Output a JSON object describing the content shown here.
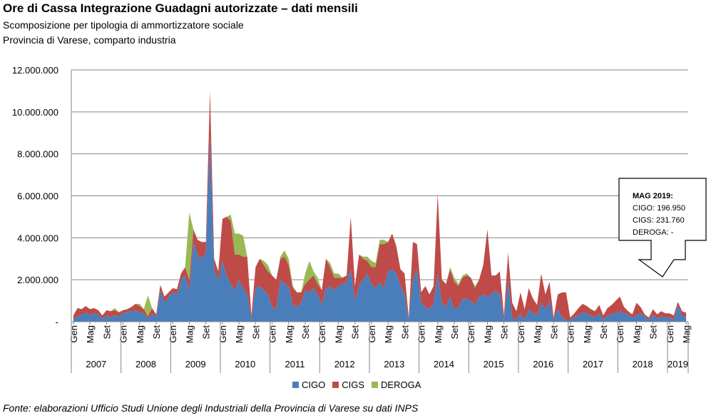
{
  "title": "Ore di Cassa Integrazione Guadagni autorizzate – dati mensili",
  "subtitle1": "Scomposizione per tipologia di ammortizzatore sociale",
  "subtitle2": "Provincia di Varese, comparto industria",
  "source": "Fonte: elaborazioni Ufficio Studi Unione degli Industriali della Provincia di Varese su dati INPS",
  "callout": {
    "header": "MAG 2019:",
    "cigo": "CIGO: 196.950",
    "cigs": "CIGS: 231.760",
    "deroga": "DEROGA: -"
  },
  "legend": [
    {
      "label": "CIGO",
      "color": "#4a7ebb"
    },
    {
      "label": "CIGS",
      "color": "#be4b48"
    },
    {
      "label": "DEROGA",
      "color": "#98b954"
    }
  ],
  "chart_data": {
    "type": "area",
    "stacked": true,
    "ylim": [
      0,
      12000000
    ],
    "yticks": [
      "-",
      "2.000.000",
      "4.000.000",
      "6.000.000",
      "8.000.000",
      "10.000.000",
      "12.000.000"
    ],
    "month_tick_labels": [
      "Gen",
      "Mag",
      "Set"
    ],
    "years": [
      "2007",
      "2008",
      "2009",
      "2010",
      "2011",
      "2012",
      "2013",
      "2014",
      "2015",
      "2016",
      "2017",
      "2018",
      "2019"
    ],
    "grid": true,
    "legend_position": "bottom",
    "series": [
      {
        "name": "CIGO",
        "color": "#4a7ebb",
        "values": [
          100000,
          250000,
          350000,
          450000,
          300000,
          400000,
          350000,
          150000,
          300000,
          200000,
          300000,
          250000,
          400000,
          450000,
          500000,
          550000,
          450000,
          400000,
          150000,
          350000,
          250000,
          1500000,
          900000,
          1200000,
          1400000,
          1300000,
          2000000,
          2200000,
          1500000,
          3800000,
          3200000,
          3000000,
          3300000,
          8800000,
          2500000,
          2000000,
          2900000,
          2200000,
          1800000,
          1500000,
          2000000,
          1600000,
          1300000,
          100000,
          1600000,
          1700000,
          1500000,
          1300000,
          700000,
          600000,
          2000000,
          1800000,
          1700000,
          800000,
          700000,
          900000,
          1500000,
          1400000,
          1600000,
          1300000,
          800000,
          1600000,
          1700000,
          1500000,
          1700000,
          1800000,
          1900000,
          2500000,
          1000000,
          1700000,
          2000000,
          2300000,
          1800000,
          1600000,
          1900000,
          1600000,
          2400000,
          2500000,
          2300000,
          1700000,
          1300000,
          100000,
          2000000,
          2500000,
          900000,
          700000,
          600000,
          900000,
          2300000,
          900000,
          700000,
          1200000,
          600000,
          700000,
          1100000,
          1100000,
          1000000,
          800000,
          1200000,
          1300000,
          1200000,
          1300000,
          1500000,
          1300000,
          100000,
          2000000,
          200000,
          100000,
          400000,
          100000,
          600000,
          400000,
          300000,
          900000,
          600000,
          1000000,
          100000,
          600000,
          200000,
          100000,
          100000,
          200000,
          300000,
          450000,
          400000,
          300000,
          200000,
          400000,
          100000,
          300000,
          350000,
          400000,
          500000,
          400000,
          350000,
          200000,
          300000,
          400000,
          250000,
          100000,
          350000,
          150000,
          250000,
          200000,
          200000,
          100000,
          800000,
          300000,
          196950
        ]
      },
      {
        "name": "CIGS",
        "color": "#be4b48",
        "values": [
          200000,
          400000,
          250000,
          300000,
          300000,
          250000,
          200000,
          150000,
          250000,
          300000,
          250000,
          200000,
          150000,
          150000,
          200000,
          300000,
          300000,
          200000,
          100000,
          300000,
          100000,
          250000,
          300000,
          200000,
          200000,
          250000,
          300000,
          400000,
          500000,
          600000,
          700000,
          800000,
          500000,
          2200000,
          500000,
          400000,
          2000000,
          2800000,
          3000000,
          1700000,
          1200000,
          1500000,
          1800000,
          200000,
          1000000,
          1300000,
          1200000,
          1100000,
          1500000,
          1400000,
          1000000,
          1300000,
          1000000,
          800000,
          700000,
          500000,
          300000,
          600000,
          600000,
          500000,
          700000,
          1400000,
          900000,
          600000,
          400000,
          300000,
          300000,
          2500000,
          700000,
          1500000,
          1000000,
          600000,
          800000,
          1000000,
          1800000,
          2100000,
          1400000,
          1700000,
          1300000,
          800000,
          1000000,
          100000,
          1800000,
          1200000,
          500000,
          1000000,
          700000,
          800000,
          3800000,
          1100000,
          1100000,
          1300000,
          1300000,
          1000000,
          1000000,
          1100000,
          1100000,
          800000,
          800000,
          1400000,
          3200000,
          900000,
          700000,
          1100000,
          200000,
          1300000,
          700000,
          400000,
          1000000,
          500000,
          1000000,
          700000,
          500000,
          1400000,
          700000,
          900000,
          100000,
          700000,
          1200000,
          1300000,
          100000,
          200000,
          350000,
          400000,
          350000,
          300000,
          300000,
          400000,
          200000,
          350000,
          450000,
          600000,
          700000,
          300000,
          150000,
          150000,
          600000,
          300000,
          100000,
          100000,
          250000,
          200000,
          250000,
          200000,
          200000,
          200000,
          150000,
          200000,
          231760
        ]
      },
      {
        "name": "DEROGA",
        "color": "#98b954",
        "values": [
          0,
          0,
          0,
          0,
          0,
          0,
          0,
          0,
          0,
          0,
          100000,
          0,
          0,
          0,
          0,
          0,
          100000,
          0,
          1000000,
          0,
          0,
          0,
          0,
          0,
          0,
          0,
          0,
          0,
          3200000,
          0,
          0,
          0,
          0,
          0,
          0,
          0,
          0,
          0,
          300000,
          1000000,
          1000000,
          1000000,
          0,
          0,
          0,
          0,
          200000,
          300000,
          0,
          0,
          100000,
          300000,
          300000,
          100000,
          0,
          0,
          500000,
          900000,
          200000,
          300000,
          0,
          0,
          200000,
          200000,
          200000,
          0,
          0,
          0,
          0,
          0,
          100000,
          200000,
          300000,
          200000,
          200000,
          200000,
          0,
          0,
          0,
          0,
          0,
          0,
          0,
          0,
          0,
          0,
          0,
          0,
          0,
          0,
          0,
          100000,
          200000,
          100000,
          100000,
          100000,
          0,
          100000,
          0,
          0,
          0,
          0,
          0,
          0,
          0,
          0,
          0,
          0,
          0,
          0,
          0,
          0,
          0,
          0,
          0,
          0,
          0,
          0,
          0,
          0,
          0,
          0,
          0,
          0,
          0,
          0,
          0,
          0,
          0,
          0,
          0,
          0,
          0,
          0,
          0,
          0,
          0,
          0,
          0,
          0,
          0,
          0,
          0,
          0,
          0,
          0,
          0,
          0,
          0
        ]
      }
    ]
  }
}
